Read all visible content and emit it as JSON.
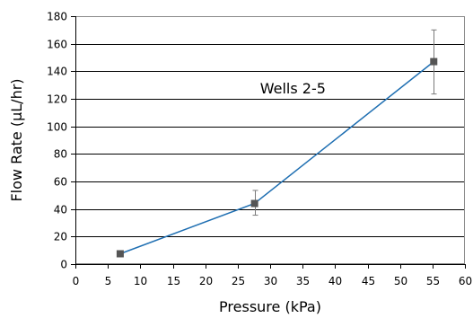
{
  "chart_data": {
    "type": "line",
    "title": "",
    "annotation": "Wells 2-5",
    "xlabel": "Pressure (kPa)",
    "ylabel": "Flow Rate (µL/hr)",
    "xlim": [
      0,
      60
    ],
    "ylim": [
      0,
      180
    ],
    "xticks": [
      0,
      5,
      10,
      15,
      20,
      25,
      30,
      35,
      40,
      45,
      50,
      55,
      60
    ],
    "yticks": [
      0,
      20,
      40,
      60,
      80,
      100,
      120,
      140,
      160,
      180
    ],
    "grid": "horizontal",
    "legend": "none",
    "series": [
      {
        "x": [
          6.9,
          27.6,
          55.2
        ],
        "y": [
          7.5,
          44,
          147
        ],
        "error_y": [
          [
            7.5,
            7.5
          ],
          [
            35.5,
            53.5
          ],
          [
            123.5,
            170
          ]
        ],
        "line_color": "#1f6fb2",
        "marker_color": "#555555",
        "marker": "square"
      }
    ]
  }
}
